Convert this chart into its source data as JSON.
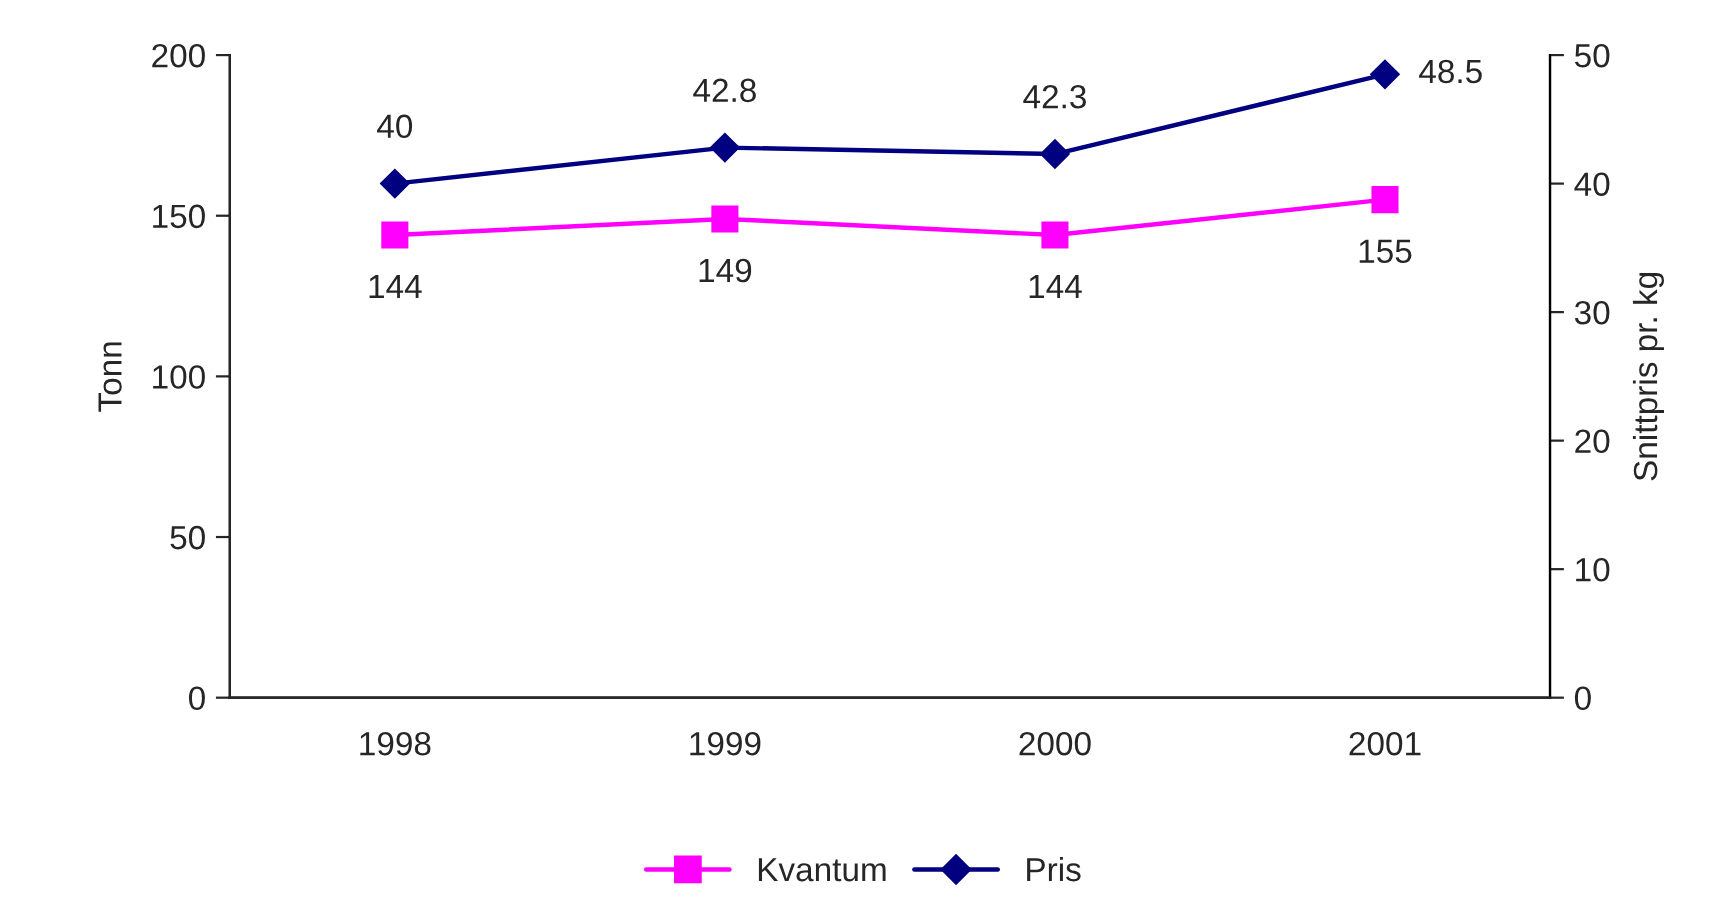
{
  "chart_data": {
    "type": "line",
    "categories": [
      "1998",
      "1999",
      "2000",
      "2001"
    ],
    "series": [
      {
        "name": "Kvantum",
        "color": "#ff00ff",
        "values": [
          144,
          149,
          144,
          155
        ],
        "marker": "square"
      },
      {
        "name": "Pris",
        "color": "#000080",
        "values": [
          40,
          42.8,
          42.3,
          48.5
        ],
        "marker": "diamond",
        "axis": "y2"
      }
    ],
    "ylabel": "Tonn",
    "y2label": "Snittpris pr. kg",
    "ylim": [
      0,
      200
    ],
    "yticks": [
      0,
      50,
      100,
      150,
      200
    ],
    "y2lim": [
      0,
      50
    ],
    "y2ticks": [
      0,
      10,
      20,
      30,
      40,
      50
    ],
    "data_labels": true,
    "legend": "bottom",
    "grid": false
  }
}
